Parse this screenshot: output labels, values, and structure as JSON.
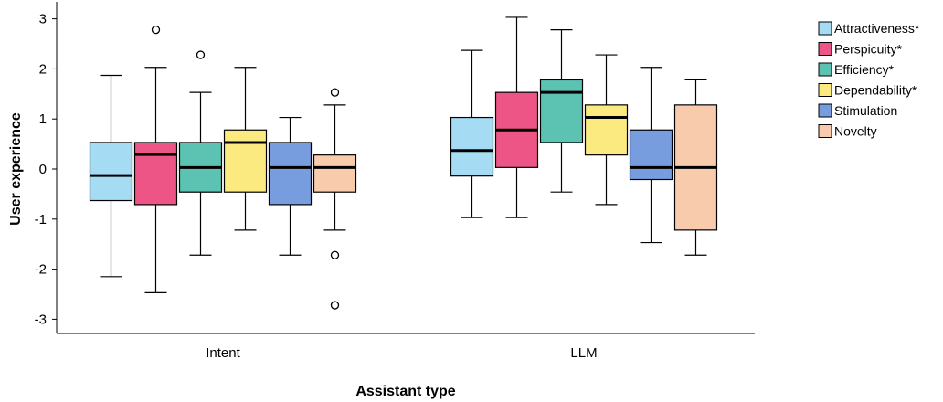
{
  "chart_data": {
    "type": "boxplot",
    "title": "",
    "xlabel": "Assistant type",
    "ylabel": "User experience",
    "ylim": [
      -3.2,
      3.25
    ],
    "yticks": [
      3,
      2,
      1,
      0,
      -1,
      -2,
      -3
    ],
    "categories": [
      "Intent",
      "LLM"
    ],
    "legend_position": "top-right",
    "grid": false,
    "series": [
      {
        "name": "Attractiveness*",
        "color": "#a6dcf3",
        "boxes": [
          {
            "min": -2.15,
            "q1": -0.63,
            "median": -0.13,
            "q3": 0.53,
            "max": 1.87,
            "outliers": []
          },
          {
            "min": -0.97,
            "q1": -0.14,
            "median": 0.37,
            "q3": 1.03,
            "max": 2.37,
            "outliers": []
          }
        ]
      },
      {
        "name": "Perspicuity*",
        "color": "#ec5586",
        "boxes": [
          {
            "min": -2.47,
            "q1": -0.71,
            "median": 0.29,
            "q3": 0.53,
            "max": 2.03,
            "outliers": [
              2.78
            ]
          },
          {
            "min": -0.97,
            "q1": 0.03,
            "median": 0.78,
            "q3": 1.53,
            "max": 3.03,
            "outliers": []
          }
        ]
      },
      {
        "name": "Efficiency*",
        "color": "#5cc3b3",
        "boxes": [
          {
            "min": -1.72,
            "q1": -0.46,
            "median": 0.03,
            "q3": 0.53,
            "max": 1.53,
            "outliers": [
              2.28
            ]
          },
          {
            "min": -0.46,
            "q1": 0.53,
            "median": 1.53,
            "q3": 1.78,
            "max": 2.78,
            "outliers": []
          }
        ]
      },
      {
        "name": "Dependability*",
        "color": "#fbea80",
        "boxes": [
          {
            "min": -1.22,
            "q1": -0.46,
            "median": 0.53,
            "q3": 0.78,
            "max": 2.03,
            "outliers": []
          },
          {
            "min": -0.71,
            "q1": 0.28,
            "median": 1.03,
            "q3": 1.28,
            "max": 2.28,
            "outliers": []
          }
        ]
      },
      {
        "name": "Stimulation",
        "color": "#789ddf",
        "boxes": [
          {
            "min": -1.72,
            "q1": -0.71,
            "median": 0.03,
            "q3": 0.53,
            "max": 1.03,
            "outliers": []
          },
          {
            "min": -1.47,
            "q1": -0.21,
            "median": 0.03,
            "q3": 0.78,
            "max": 2.03,
            "outliers": []
          }
        ]
      },
      {
        "name": "Novelty",
        "color": "#f8cbad",
        "boxes": [
          {
            "min": -1.22,
            "q1": -0.46,
            "median": 0.03,
            "q3": 0.28,
            "max": 1.28,
            "outliers": [
              1.53,
              -1.72,
              -2.72
            ]
          },
          {
            "min": -1.72,
            "q1": -1.22,
            "median": 0.03,
            "q3": 1.28,
            "max": 1.78,
            "outliers": []
          }
        ]
      }
    ]
  }
}
